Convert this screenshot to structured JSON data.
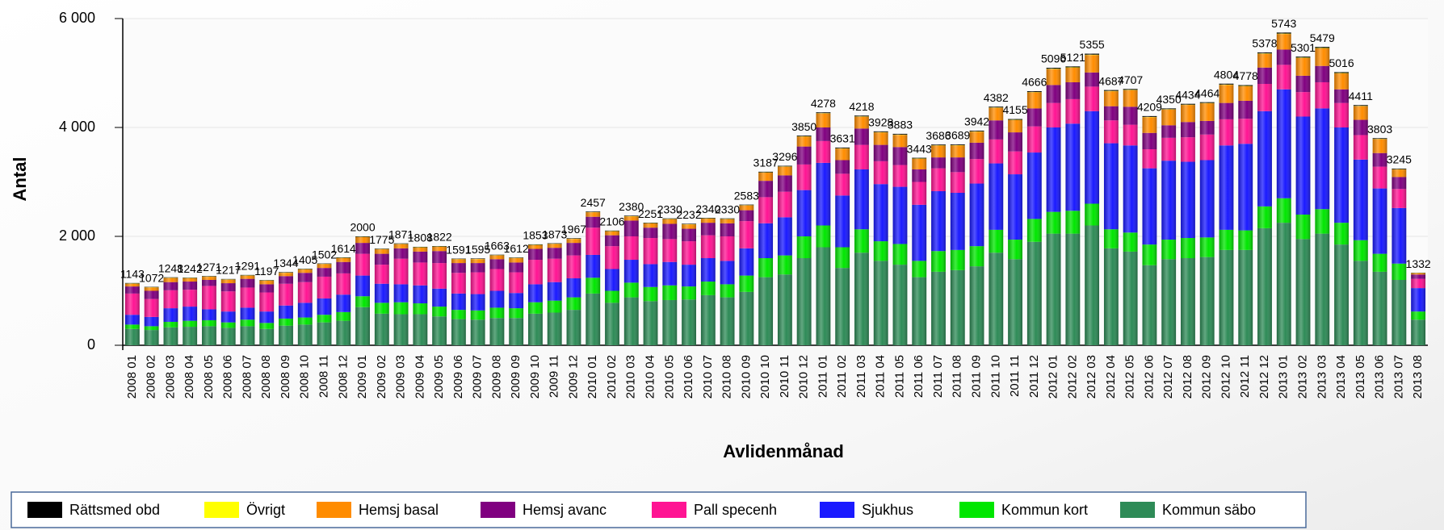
{
  "chart_data": {
    "type": "stacked_bar",
    "x_label": "Avlidenmånad",
    "y_label": "Antal",
    "ylim": [
      0,
      6000
    ],
    "yticks": [
      {
        "value": 0,
        "label": "0"
      },
      {
        "value": 2000,
        "label": "2 000"
      },
      {
        "value": 4000,
        "label": "4 000"
      },
      {
        "value": 6000,
        "label": "6 000"
      }
    ],
    "grid": true,
    "legend": "bottom",
    "categories": [
      "2008 01",
      "2008 02",
      "2008 03",
      "2008 04",
      "2008 05",
      "2008 06",
      "2008 07",
      "2008 08",
      "2008 09",
      "2008 10",
      "2008 11",
      "2008 12",
      "2009 01",
      "2009 02",
      "2009 03",
      "2009 04",
      "2009 05",
      "2009 06",
      "2009 07",
      "2009 08",
      "2009 09",
      "2009 10",
      "2009 11",
      "2009 12",
      "2010 01",
      "2010 02",
      "2010 03",
      "2010 04",
      "2010 05",
      "2010 06",
      "2010 07",
      "2010 08",
      "2010 09",
      "2010 10",
      "2010 11",
      "2010 12",
      "2011 01",
      "2011 02",
      "2011 03",
      "2011 04",
      "2011 05",
      "2011 06",
      "2011 07",
      "2011 08",
      "2011 09",
      "2011 10",
      "2011 11",
      "2011 12",
      "2012 01",
      "2012 02",
      "2012 03",
      "2012 04",
      "2012 05",
      "2012 06",
      "2012 07",
      "2012 08",
      "2012 09",
      "2012 10",
      "2012 11",
      "2012 12",
      "2013 01",
      "2013 02",
      "2013 03",
      "2013 04",
      "2013 05",
      "2013 06",
      "2013 07",
      "2013 08"
    ],
    "totals": [
      1143,
      1072,
      1248,
      1242,
      1271,
      1217,
      1291,
      1197,
      1344,
      1405,
      1502,
      1614,
      2000,
      1775,
      1871,
      1808,
      1822,
      1591,
      1595,
      1663,
      1612,
      1853,
      1873,
      1967,
      2457,
      2106,
      2380,
      2251,
      2330,
      2232,
      2340,
      2330,
      2583,
      3187,
      3296,
      3850,
      4278,
      3631,
      4218,
      3928,
      3883,
      3443,
      3686,
      3689,
      3942,
      4382,
      4155,
      4666,
      5096,
      5121,
      5355,
      4687,
      4707,
      4209,
      4350,
      4434,
      4464,
      4804,
      4778,
      5378,
      5743,
      5301,
      5479,
      5016,
      4411,
      3803,
      3245,
      1332
    ],
    "series": [
      {
        "name": "Kommun säbo",
        "color": "#2e8b57",
        "values": [
          300,
          280,
          330,
          340,
          350,
          320,
          350,
          300,
          360,
          380,
          420,
          450,
          700,
          580,
          570,
          570,
          530,
          480,
          470,
          500,
          500,
          580,
          600,
          650,
          950,
          780,
          880,
          810,
          830,
          840,
          920,
          880,
          980,
          1250,
          1300,
          1600,
          1800,
          1420,
          1700,
          1550,
          1480,
          1250,
          1350,
          1380,
          1450,
          1700,
          1580,
          1900,
          2050,
          2050,
          2200,
          1780,
          1720,
          1470,
          1580,
          1600,
          1620,
          1750,
          1750,
          2150,
          2250,
          1950,
          2050,
          1850,
          1550,
          1350,
          1200,
          470
        ]
      },
      {
        "name": "Kommun kort",
        "color": "#00e600",
        "values": [
          80,
          70,
          100,
          110,
          110,
          100,
          120,
          110,
          130,
          130,
          140,
          160,
          200,
          200,
          220,
          200,
          180,
          170,
          170,
          190,
          180,
          210,
          220,
          230,
          290,
          220,
          270,
          260,
          270,
          240,
          250,
          240,
          300,
          350,
          350,
          400,
          400,
          380,
          430,
          360,
          380,
          300,
          380,
          370,
          370,
          420,
          360,
          420,
          400,
          420,
          400,
          350,
          350,
          380,
          360,
          370,
          360,
          370,
          360,
          400,
          450,
          450,
          450,
          400,
          380,
          330,
          300,
          150
        ]
      },
      {
        "name": "Sjukhus",
        "color": "#1a1aff",
        "values": [
          180,
          170,
          250,
          260,
          200,
          200,
          220,
          210,
          240,
          270,
          300,
          320,
          380,
          350,
          330,
          330,
          330,
          300,
          300,
          310,
          280,
          330,
          340,
          350,
          420,
          400,
          420,
          420,
          430,
          400,
          430,
          430,
          500,
          640,
          700,
          850,
          1150,
          950,
          1100,
          1050,
          1050,
          1030,
          1100,
          1050,
          1150,
          1220,
          1200,
          1220,
          1550,
          1600,
          1700,
          1580,
          1600,
          1400,
          1450,
          1400,
          1420,
          1550,
          1590,
          1750,
          2000,
          1800,
          1850,
          1750,
          1480,
          1200,
          1020,
          430
        ]
      },
      {
        "name": "Pall specenh",
        "color": "#ff1493",
        "values": [
          390,
          330,
          330,
          310,
          430,
          370,
          370,
          350,
          400,
          380,
          400,
          390,
          400,
          350,
          470,
          420,
          470,
          380,
          400,
          400,
          380,
          450,
          430,
          420,
          500,
          420,
          430,
          480,
          420,
          430,
          420,
          450,
          500,
          480,
          470,
          470,
          400,
          400,
          450,
          420,
          400,
          420,
          420,
          380,
          450,
          440,
          420,
          480,
          450,
          450,
          450,
          420,
          380,
          350,
          420,
          450,
          470,
          480,
          460,
          500,
          450,
          450,
          480,
          450,
          450,
          400,
          350,
          170
        ]
      },
      {
        "name": "Hemsj avanc",
        "color": "#800080",
        "values": [
          130,
          150,
          150,
          150,
          110,
          150,
          160,
          150,
          140,
          170,
          160,
          210,
          200,
          200,
          190,
          200,
          220,
          180,
          170,
          180,
          180,
          200,
          200,
          230,
          200,
          200,
          290,
          190,
          280,
          230,
          230,
          240,
          200,
          300,
          300,
          330,
          250,
          250,
          300,
          300,
          330,
          230,
          200,
          270,
          300,
          350,
          350,
          330,
          330,
          310,
          260,
          260,
          330,
          300,
          230,
          280,
          250,
          300,
          330,
          300,
          280,
          300,
          300,
          250,
          280,
          250,
          220,
          80
        ]
      },
      {
        "name": "Hemsj basal",
        "color": "#ff8c00",
        "values": [
          50,
          60,
          75,
          60,
          58,
          65,
          58,
          65,
          61,
          62,
          69,
          70,
          105,
          82,
          77,
          75,
          78,
          68,
          72,
          70,
          79,
          69,
          69,
          73,
          82,
          72,
          75,
          77,
          85,
          78,
          75,
          75,
          88,
          150,
          159,
          181,
          257,
          212,
          217,
          228,
          223,
          195,
          216,
          219,
          202,
          231,
          224,
          294,
          291,
          266,
          319,
          274,
          304,
          288,
          289,
          313,
          323,
          331,
          265,
          252,
          286,
          325,
          322,
          292,
          250,
          254,
          138,
          24
        ]
      },
      {
        "name": "Övrigt",
        "color": "#ffff00",
        "values": [
          5,
          5,
          5,
          5,
          5,
          5,
          5,
          5,
          5,
          5,
          5,
          5,
          5,
          5,
          5,
          5,
          5,
          5,
          5,
          5,
          5,
          5,
          5,
          5,
          5,
          5,
          5,
          5,
          5,
          5,
          5,
          5,
          5,
          5,
          5,
          5,
          6,
          5,
          6,
          6,
          6,
          5,
          6,
          6,
          6,
          6,
          6,
          6,
          8,
          8,
          8,
          7,
          7,
          6,
          6,
          6,
          6,
          7,
          7,
          8,
          8,
          8,
          8,
          7,
          6,
          6,
          5,
          3
        ]
      },
      {
        "name": "Rättsmed obd",
        "color": "#000000",
        "values": [
          8,
          7,
          8,
          7,
          8,
          7,
          8,
          7,
          8,
          8,
          8,
          9,
          10,
          8,
          9,
          8,
          9,
          8,
          8,
          8,
          8,
          9,
          9,
          9,
          10,
          9,
          10,
          9,
          10,
          9,
          10,
          10,
          10,
          12,
          12,
          14,
          15,
          14,
          15,
          14,
          14,
          13,
          14,
          14,
          14,
          15,
          15,
          16,
          17,
          17,
          18,
          16,
          16,
          15,
          15,
          15,
          15,
          16,
          16,
          18,
          19,
          18,
          19,
          17,
          15,
          13,
          12,
          5
        ]
      }
    ]
  }
}
